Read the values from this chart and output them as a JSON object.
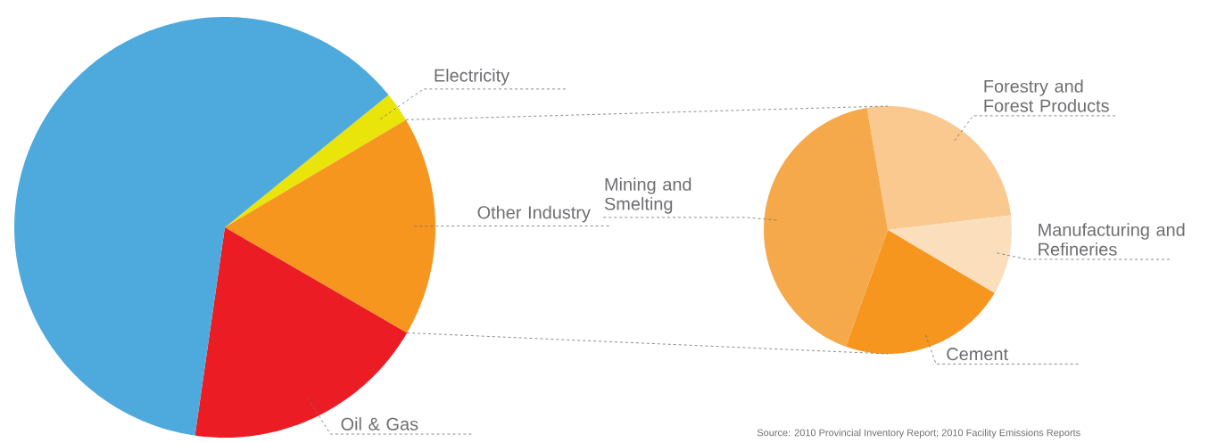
{
  "chart_data": [
    {
      "type": "pie",
      "categories": [
        "Electricity",
        "Other Industry",
        "Oil & Gas",
        null
      ],
      "values": [
        2.3,
        16.9,
        18.9,
        61.9
      ],
      "colors": [
        "#e9e50a",
        "#f6961f",
        "#ec1c24",
        "#4eaadc"
      ]
    },
    {
      "type": "pie",
      "categories": [
        "Forestry and Forest Products",
        "Manufacturing and Refineries",
        "Cement",
        "Mining and Smelting"
      ],
      "values": [
        25.8,
        10.4,
        22.0,
        41.8
      ],
      "colors": [
        "#f9c98f",
        "#fbdfbd",
        "#f6961f",
        "#f5a94b"
      ],
      "annotations": [
        "Source: 2010 Provincial Inventory Report; 2010 Facility Emissions Reports"
      ]
    }
  ]
}
